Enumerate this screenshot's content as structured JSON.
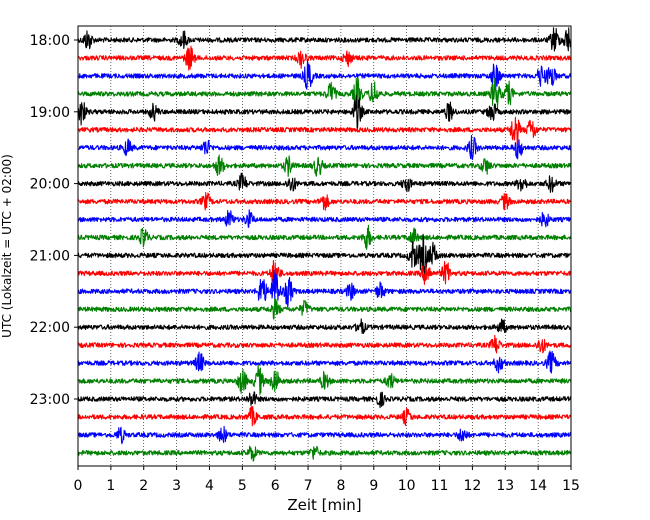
{
  "chart_data": {
    "type": "line",
    "xlabel": "Zeit  [min]",
    "ylabel": "UTC (Lokalzeit = UTC + 02:00)",
    "xlim": [
      0,
      15
    ],
    "x_ticks": [
      0,
      1,
      2,
      3,
      4,
      5,
      6,
      7,
      8,
      9,
      10,
      11,
      12,
      13,
      14,
      15
    ],
    "y_tick_labels": [
      "18:00",
      "19:00",
      "20:00",
      "21:00",
      "22:00",
      "23:00"
    ],
    "grid": "vertical dotted lines at each minute",
    "trace_interval_min": 15,
    "trace_colors": [
      "#000000",
      "#ff0000",
      "#0000ff",
      "#008000"
    ],
    "trace_count": 24,
    "traces": [
      {
        "label": "18:00",
        "color": "#000000",
        "events": [
          {
            "t": 0.3,
            "amp": 1.8
          },
          {
            "t": 3.2,
            "amp": 1.5
          },
          {
            "t": 14.5,
            "amp": 2.4
          },
          {
            "t": 14.9,
            "amp": 2.2
          }
        ]
      },
      {
        "label": "18:15",
        "color": "#ff0000",
        "events": [
          {
            "t": 3.4,
            "amp": 2.2
          },
          {
            "t": 6.8,
            "amp": 1.5
          },
          {
            "t": 8.2,
            "amp": 1.3
          }
        ]
      },
      {
        "label": "18:30",
        "color": "#0000ff",
        "events": [
          {
            "t": 7.0,
            "amp": 2.6
          },
          {
            "t": 12.7,
            "amp": 2.4
          },
          {
            "t": 14.1,
            "amp": 1.8
          },
          {
            "t": 14.4,
            "amp": 2.0
          }
        ]
      },
      {
        "label": "18:45",
        "color": "#008000",
        "events": [
          {
            "t": 7.7,
            "amp": 2.0
          },
          {
            "t": 8.5,
            "amp": 2.6
          },
          {
            "t": 9.0,
            "amp": 2.2
          },
          {
            "t": 12.7,
            "amp": 3.0
          },
          {
            "t": 13.1,
            "amp": 2.0
          }
        ]
      },
      {
        "label": "19:00",
        "color": "#000000",
        "events": [
          {
            "t": 0.1,
            "amp": 2.4
          },
          {
            "t": 2.3,
            "amp": 1.4
          },
          {
            "t": 8.5,
            "amp": 3.0
          },
          {
            "t": 11.3,
            "amp": 1.6
          },
          {
            "t": 12.6,
            "amp": 1.8
          }
        ]
      },
      {
        "label": "19:15",
        "color": "#ff0000",
        "events": [
          {
            "t": 13.3,
            "amp": 3.2
          },
          {
            "t": 13.8,
            "amp": 2.0
          }
        ]
      },
      {
        "label": "19:30",
        "color": "#0000ff",
        "events": [
          {
            "t": 1.5,
            "amp": 1.4
          },
          {
            "t": 3.9,
            "amp": 1.4
          },
          {
            "t": 12.0,
            "amp": 2.0
          },
          {
            "t": 13.4,
            "amp": 1.8
          }
        ]
      },
      {
        "label": "19:45",
        "color": "#008000",
        "events": [
          {
            "t": 4.3,
            "amp": 1.8
          },
          {
            "t": 6.4,
            "amp": 1.6
          },
          {
            "t": 7.3,
            "amp": 1.8
          },
          {
            "t": 12.4,
            "amp": 1.4
          }
        ]
      },
      {
        "label": "20:00",
        "color": "#000000",
        "events": [
          {
            "t": 5.0,
            "amp": 1.6
          },
          {
            "t": 6.5,
            "amp": 1.4
          },
          {
            "t": 10.0,
            "amp": 1.3
          },
          {
            "t": 13.5,
            "amp": 1.5
          },
          {
            "t": 14.4,
            "amp": 1.4
          }
        ]
      },
      {
        "label": "20:15",
        "color": "#ff0000",
        "events": [
          {
            "t": 3.9,
            "amp": 1.4
          },
          {
            "t": 7.5,
            "amp": 1.4
          },
          {
            "t": 13.0,
            "amp": 1.3
          }
        ]
      },
      {
        "label": "20:30",
        "color": "#0000ff",
        "events": [
          {
            "t": 4.6,
            "amp": 1.5
          },
          {
            "t": 5.2,
            "amp": 1.4
          },
          {
            "t": 14.2,
            "amp": 1.3
          }
        ]
      },
      {
        "label": "20:45",
        "color": "#008000",
        "events": [
          {
            "t": 2.0,
            "amp": 1.6
          },
          {
            "t": 8.8,
            "amp": 2.0
          },
          {
            "t": 10.2,
            "amp": 1.5
          }
        ]
      },
      {
        "label": "21:00",
        "color": "#000000",
        "events": [
          {
            "t": 10.5,
            "amp": 3.6
          },
          {
            "t": 10.2,
            "amp": 2.4
          },
          {
            "t": 10.8,
            "amp": 2.0
          }
        ]
      },
      {
        "label": "21:15",
        "color": "#ff0000",
        "events": [
          {
            "t": 6.0,
            "amp": 2.6
          },
          {
            "t": 10.6,
            "amp": 2.2
          },
          {
            "t": 11.2,
            "amp": 2.0
          }
        ]
      },
      {
        "label": "21:30",
        "color": "#0000ff",
        "events": [
          {
            "t": 6.0,
            "amp": 4.0
          },
          {
            "t": 5.6,
            "amp": 2.8
          },
          {
            "t": 6.4,
            "amp": 2.6
          },
          {
            "t": 8.3,
            "amp": 1.4
          },
          {
            "t": 9.2,
            "amp": 1.4
          }
        ]
      },
      {
        "label": "21:45",
        "color": "#008000",
        "events": [
          {
            "t": 6.0,
            "amp": 1.6
          },
          {
            "t": 6.9,
            "amp": 1.3
          }
        ]
      },
      {
        "label": "22:00",
        "color": "#000000",
        "events": [
          {
            "t": 8.6,
            "amp": 1.3
          },
          {
            "t": 12.9,
            "amp": 1.3
          }
        ]
      },
      {
        "label": "22:15",
        "color": "#ff0000",
        "events": [
          {
            "t": 12.7,
            "amp": 1.6
          },
          {
            "t": 14.1,
            "amp": 1.4
          }
        ]
      },
      {
        "label": "22:30",
        "color": "#0000ff",
        "events": [
          {
            "t": 3.7,
            "amp": 1.8
          },
          {
            "t": 12.8,
            "amp": 1.5
          },
          {
            "t": 14.4,
            "amp": 2.0
          }
        ]
      },
      {
        "label": "22:45",
        "color": "#008000",
        "events": [
          {
            "t": 5.5,
            "amp": 2.6
          },
          {
            "t": 5.0,
            "amp": 2.2
          },
          {
            "t": 6.0,
            "amp": 2.2
          },
          {
            "t": 7.5,
            "amp": 1.4
          },
          {
            "t": 9.5,
            "amp": 1.3
          }
        ]
      },
      {
        "label": "23:00",
        "color": "#000000",
        "events": [
          {
            "t": 5.3,
            "amp": 1.3
          },
          {
            "t": 9.2,
            "amp": 1.2
          }
        ]
      },
      {
        "label": "23:15",
        "color": "#ff0000",
        "events": [
          {
            "t": 5.3,
            "amp": 1.6
          },
          {
            "t": 10.0,
            "amp": 1.3
          }
        ]
      },
      {
        "label": "23:30",
        "color": "#0000ff",
        "events": [
          {
            "t": 1.3,
            "amp": 1.3
          },
          {
            "t": 4.4,
            "amp": 1.4
          },
          {
            "t": 11.7,
            "amp": 1.3
          }
        ]
      },
      {
        "label": "23:45",
        "color": "#008000",
        "events": [
          {
            "t": 5.3,
            "amp": 1.4
          },
          {
            "t": 7.2,
            "amp": 1.2
          }
        ]
      }
    ]
  }
}
